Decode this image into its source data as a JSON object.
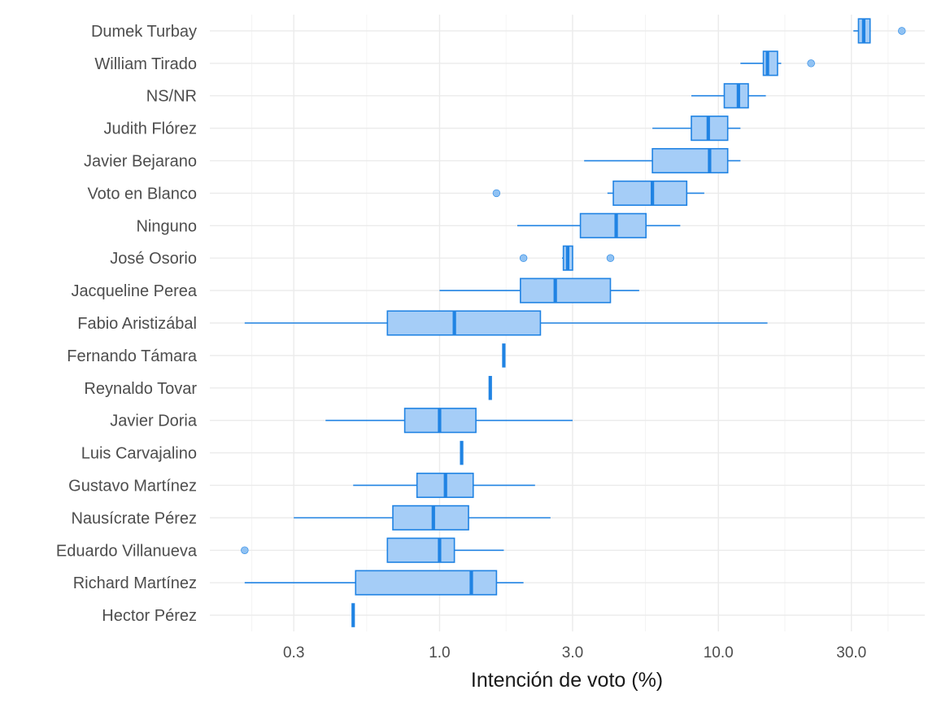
{
  "chart_data": {
    "type": "boxplot",
    "title": "",
    "xlabel": "Intención de voto (%)",
    "ylabel": "",
    "x_scale": "log10",
    "xlim": [
      0.15,
      55
    ],
    "x_ticks": [
      0.3,
      1.0,
      3.0,
      10.0,
      30.0
    ],
    "x_tick_labels": [
      "0.3",
      "1.0",
      "3.0",
      "10.0",
      "30.0"
    ],
    "grid": true,
    "colors": {
      "box_fill": "#a5cdf7",
      "box_stroke": "#2083e3",
      "outlier_fill": "#90c2f3"
    },
    "categories": [
      "Dumek Turbay",
      "William Tirado",
      "NS/NR",
      "Judith Flórez",
      "Javier Bejarano",
      "Voto en Blanco",
      "Ninguno",
      "José Osorio",
      "Jacqueline Perea",
      "Fabio Aristizábal",
      "Fernando Támara",
      "Reynaldo Tovar",
      "Javier Doria",
      "Luis Carvajalino",
      "Gustavo Martínez",
      "Nausícrate Pérez",
      "Eduardo Villanueva",
      "Richard Martínez",
      "Hector Pérez"
    ],
    "series": [
      {
        "name": "Dumek Turbay",
        "min": 30.5,
        "q1": 31.8,
        "median": 33.2,
        "q3": 35.0,
        "max": 35.2,
        "outliers": [
          45.5
        ]
      },
      {
        "name": "William Tirado",
        "min": 12.0,
        "q1": 14.5,
        "median": 15.0,
        "q3": 16.3,
        "max": 16.8,
        "outliers": [
          21.5
        ]
      },
      {
        "name": "NS/NR",
        "min": 8.0,
        "q1": 10.5,
        "median": 11.8,
        "q3": 12.8,
        "max": 14.8,
        "outliers": []
      },
      {
        "name": "Judith Flórez",
        "min": 5.8,
        "q1": 8.0,
        "median": 9.2,
        "q3": 10.8,
        "max": 12.0,
        "outliers": []
      },
      {
        "name": "Javier Bejarano",
        "min": 3.3,
        "q1": 5.8,
        "median": 9.3,
        "q3": 10.8,
        "max": 12.0,
        "outliers": []
      },
      {
        "name": "Voto en Blanco",
        "min": 4.0,
        "q1": 4.2,
        "median": 5.8,
        "q3": 7.7,
        "max": 8.9,
        "outliers": [
          1.6
        ]
      },
      {
        "name": "Ninguno",
        "min": 1.9,
        "q1": 3.2,
        "median": 4.3,
        "q3": 5.5,
        "max": 7.3,
        "outliers": []
      },
      {
        "name": "José Osorio",
        "min": 2.75,
        "q1": 2.78,
        "median": 2.88,
        "q3": 3.0,
        "max": 3.0,
        "outliers": [
          2.0,
          4.1
        ]
      },
      {
        "name": "Jacqueline Perea",
        "min": 1.0,
        "q1": 1.95,
        "median": 2.6,
        "q3": 4.1,
        "max": 5.2,
        "outliers": []
      },
      {
        "name": "Fabio Aristizábal",
        "min": 0.2,
        "q1": 0.65,
        "median": 1.13,
        "q3": 2.3,
        "max": 15.0,
        "outliers": []
      },
      {
        "name": "Fernando Támara",
        "min": 1.7,
        "q1": 1.7,
        "median": 1.7,
        "q3": 1.7,
        "max": 1.7,
        "outliers": []
      },
      {
        "name": "Reynaldo Tovar",
        "min": 1.52,
        "q1": 1.52,
        "median": 1.52,
        "q3": 1.52,
        "max": 1.52,
        "outliers": []
      },
      {
        "name": "Javier Doria",
        "min": 0.39,
        "q1": 0.75,
        "median": 1.0,
        "q3": 1.35,
        "max": 3.0,
        "outliers": []
      },
      {
        "name": "Luis Carvajalino",
        "min": 1.2,
        "q1": 1.2,
        "median": 1.2,
        "q3": 1.2,
        "max": 1.2,
        "outliers": []
      },
      {
        "name": "Gustavo Martínez",
        "min": 0.49,
        "q1": 0.83,
        "median": 1.05,
        "q3": 1.32,
        "max": 2.2,
        "outliers": []
      },
      {
        "name": "Nausícrate Pérez",
        "min": 0.3,
        "q1": 0.68,
        "median": 0.95,
        "q3": 1.27,
        "max": 2.5,
        "outliers": []
      },
      {
        "name": "Eduardo Villanueva",
        "min": 0.65,
        "q1": 0.65,
        "median": 1.0,
        "q3": 1.13,
        "max": 1.7,
        "outliers": [
          0.2
        ]
      },
      {
        "name": "Richard Martínez",
        "min": 0.2,
        "q1": 0.5,
        "median": 1.3,
        "q3": 1.6,
        "max": 2.0,
        "outliers": []
      },
      {
        "name": "Hector Pérez",
        "min": 0.49,
        "q1": 0.49,
        "median": 0.49,
        "q3": 0.49,
        "max": 0.49,
        "outliers": []
      }
    ]
  }
}
